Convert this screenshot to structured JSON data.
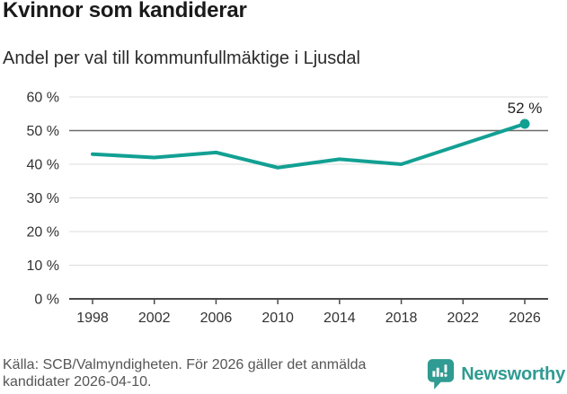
{
  "header": {
    "title": "Kvinnor som kandiderar",
    "subtitle": "Andel per val till kommunfullmäktige i Ljusdal"
  },
  "chart_data": {
    "type": "line",
    "title": "Kvinnor som kandiderar",
    "subtitle": "Andel per val till kommunfullmäktige i Ljusdal",
    "categories": [
      "1998",
      "2002",
      "2006",
      "2010",
      "2014",
      "2018",
      "2022",
      "2026"
    ],
    "values": [
      43,
      42,
      43.5,
      39,
      41.5,
      40,
      46,
      52
    ],
    "end_label": "52 %",
    "ylim": [
      0,
      60
    ],
    "ytick_step": 10,
    "ytick_suffix": " %",
    "grid": true,
    "highlight_gridline": 50,
    "legend": "none",
    "line_color": "#12a093",
    "grid_color": "#dcdcdc",
    "highlight_grid_color": "#6b6b6b",
    "axis_color": "#4a4a4a",
    "label_color": "#333333"
  },
  "footer": {
    "source_line1": "Källa: SCB/Valmyndigheten. För 2026 gäller det anmälda",
    "source_line2": "kandidater 2026-04-10.",
    "brand": "Newsworthy",
    "brand_color": "#2f9b92"
  }
}
